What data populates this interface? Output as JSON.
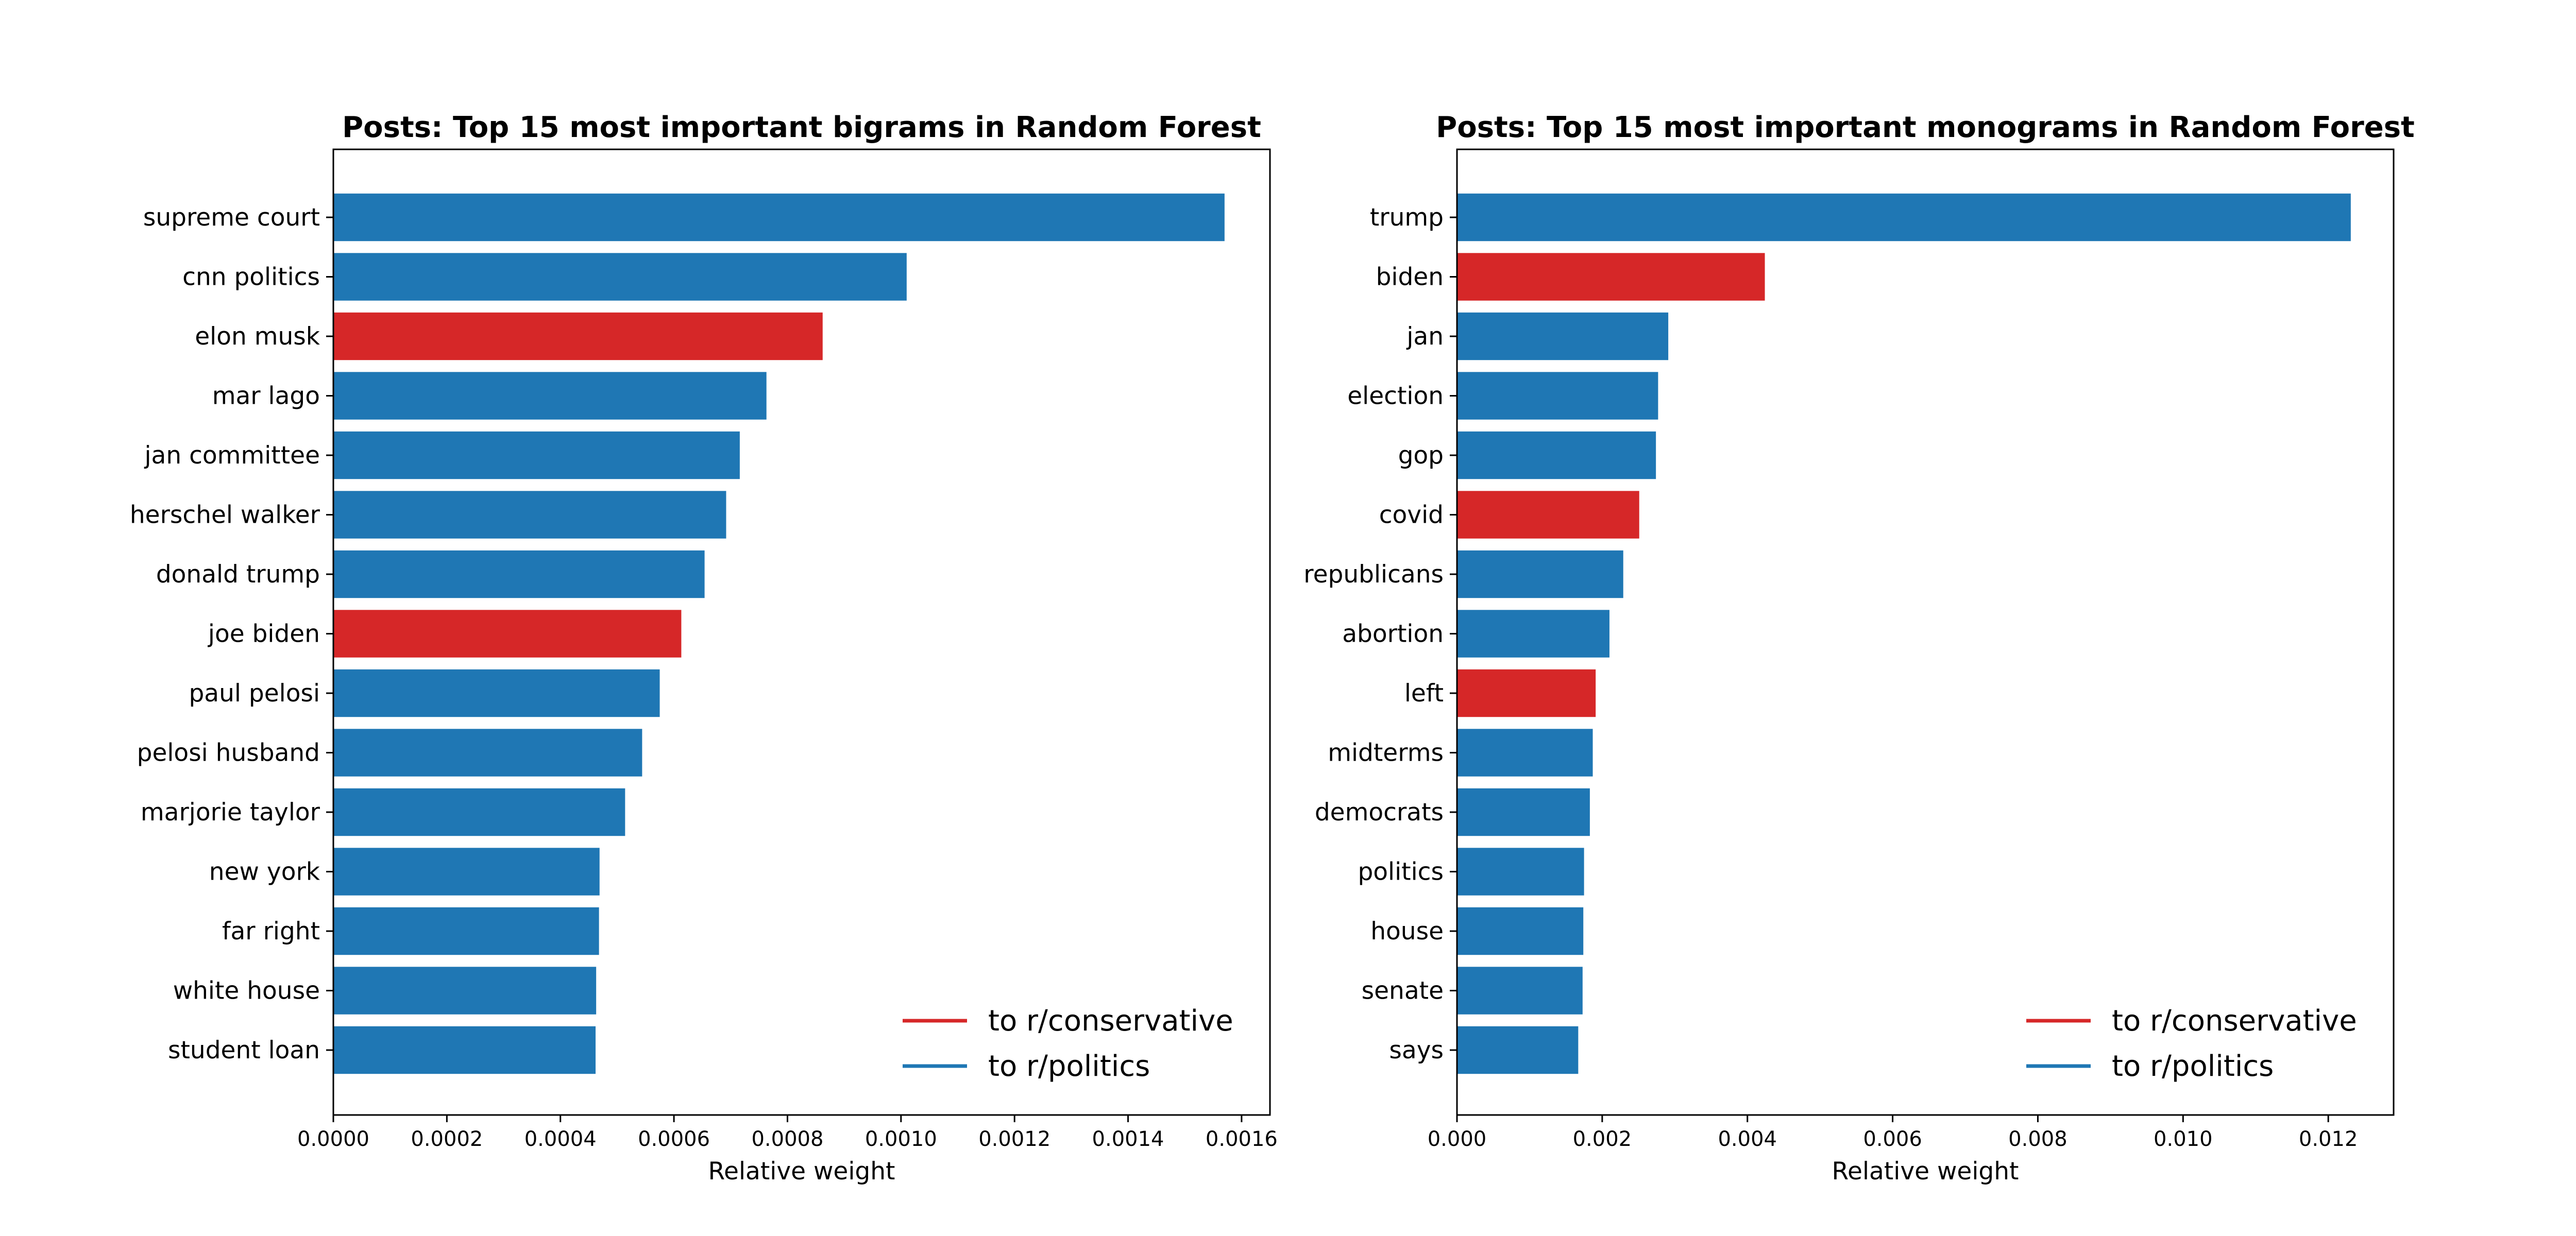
{
  "colors": {
    "to_politics": "#1f77b4",
    "to_conservative": "#d62728"
  },
  "chart_data": [
    {
      "type": "bar",
      "orientation": "horizontal",
      "title": "Posts: Top 15 most important bigrams in Random Forest",
      "xlabel": "Relative weight",
      "ylabel": "",
      "xlim": [
        0,
        0.00165
      ],
      "xticks": [
        "0.0000",
        "0.0002",
        "0.0004",
        "0.0006",
        "0.0008",
        "0.0010",
        "0.0012",
        "0.0014",
        "0.0016"
      ],
      "xtick_values": [
        0,
        0.0002,
        0.0004,
        0.0006,
        0.0008,
        0.001,
        0.0012,
        0.0014,
        0.0016
      ],
      "categories": [
        "supreme court",
        "cnn politics",
        "elon musk",
        "mar lago",
        "jan committee",
        "herschel walker",
        "donald trump",
        "joe biden",
        "paul pelosi",
        "pelosi husband",
        "marjorie taylor",
        "new york",
        "far right",
        "white house",
        "student loan"
      ],
      "values": [
        0.00157,
        0.00101,
        0.000862,
        0.000763,
        0.000716,
        0.000692,
        0.000654,
        0.000613,
        0.000575,
        0.000544,
        0.000514,
        0.000469,
        0.000468,
        0.000463,
        0.000462
      ],
      "class": [
        "politics",
        "politics",
        "conservative",
        "politics",
        "politics",
        "politics",
        "politics",
        "conservative",
        "politics",
        "politics",
        "politics",
        "politics",
        "politics",
        "politics",
        "politics"
      ],
      "legend": {
        "placement": "lower-right",
        "entries": [
          {
            "label": "to r/conservative",
            "key": "conservative"
          },
          {
            "label": "to r/politics",
            "key": "politics"
          }
        ]
      },
      "grid": false
    },
    {
      "type": "bar",
      "orientation": "horizontal",
      "title": "Posts: Top 15 most important monograms in Random Forest",
      "xlabel": "Relative weight",
      "ylabel": "",
      "xlim": [
        0,
        0.0129
      ],
      "xticks": [
        "0.000",
        "0.002",
        "0.004",
        "0.006",
        "0.008",
        "0.010",
        "0.012"
      ],
      "xtick_values": [
        0,
        0.002,
        0.004,
        0.006,
        0.008,
        0.01,
        0.012
      ],
      "categories": [
        "trump",
        "biden",
        "jan",
        "election",
        "gop",
        "covid",
        "republicans",
        "abortion",
        "left",
        "midterms",
        "democrats",
        "politics",
        "house",
        "senate",
        "says"
      ],
      "values": [
        0.01231,
        0.00424,
        0.00291,
        0.00277,
        0.00274,
        0.00251,
        0.00229,
        0.0021,
        0.00191,
        0.00187,
        0.00183,
        0.00175,
        0.00174,
        0.00173,
        0.00167
      ],
      "class": [
        "politics",
        "conservative",
        "politics",
        "politics",
        "politics",
        "conservative",
        "politics",
        "politics",
        "conservative",
        "politics",
        "politics",
        "politics",
        "politics",
        "politics",
        "politics"
      ],
      "legend": {
        "placement": "lower-right",
        "entries": [
          {
            "label": "to r/conservative",
            "key": "conservative"
          },
          {
            "label": "to r/politics",
            "key": "politics"
          }
        ]
      },
      "grid": false
    }
  ]
}
